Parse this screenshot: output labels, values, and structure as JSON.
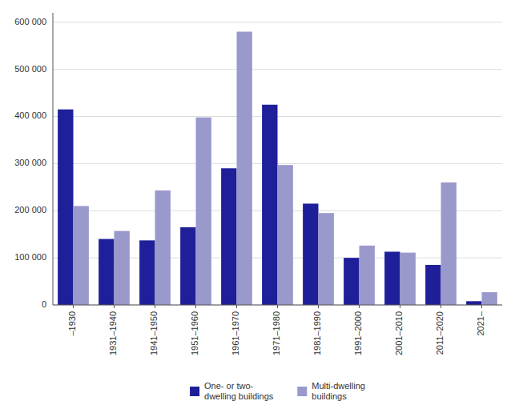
{
  "chart_data": {
    "type": "bar",
    "categories": [
      "–1930",
      "1931–1940",
      "1941–1950",
      "1951–1960",
      "1961–1970",
      "1971–1980",
      "1981–1990",
      "1991–2000",
      "2001–2010",
      "2011–2020",
      "2021–"
    ],
    "series": [
      {
        "name": "One- or two-\ndwelling buildings",
        "color": "#1f1f99",
        "values": [
          415000,
          140000,
          137000,
          165000,
          290000,
          425000,
          215000,
          100000,
          113000,
          85000,
          8000
        ]
      },
      {
        "name": "Multi-dwelling\nbuildings",
        "color": "#9999cc",
        "values": [
          210000,
          157000,
          243000,
          398000,
          580000,
          297000,
          195000,
          126000,
          111000,
          260000,
          27000
        ]
      }
    ],
    "ylim": [
      0,
      620000
    ],
    "yticks": [
      0,
      {
        "value": 100000,
        "label": "100 000"
      },
      {
        "value": 200000,
        "label": "200 000"
      },
      {
        "value": 300000,
        "label": "300 000"
      },
      {
        "value": 400000,
        "label": "400 000"
      },
      {
        "value": 500000,
        "label": "500 000"
      },
      {
        "value": 600000,
        "label": "600 000"
      }
    ],
    "grid": true,
    "legend": "bottom"
  }
}
